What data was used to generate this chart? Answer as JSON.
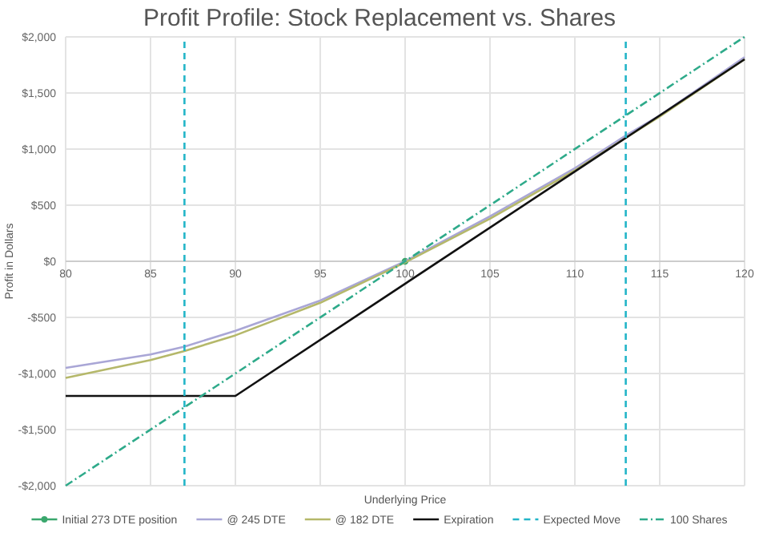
{
  "chart_data": {
    "type": "line",
    "title": "Profit Profile: Stock Replacement vs. Shares",
    "xlabel": "Underlying Price",
    "ylabel": "Profit in Dollars",
    "xlim": [
      80,
      120
    ],
    "xticks": [
      80,
      85,
      90,
      95,
      100,
      105,
      110,
      115,
      120
    ],
    "ylim": [
      -2000,
      2000
    ],
    "yticks": [
      {
        "value": 2000,
        "label": "$2,000"
      },
      {
        "value": 1500,
        "label": "$1,500"
      },
      {
        "value": 1000,
        "label": "$1,000"
      },
      {
        "value": 500,
        "label": "$500"
      },
      {
        "value": 0,
        "label": "$0"
      },
      {
        "value": -500,
        "label": "-$500"
      },
      {
        "value": -1000,
        "label": "-$1,000"
      },
      {
        "value": -1500,
        "label": "-$1,500"
      },
      {
        "value": -2000,
        "label": "-$2,000"
      }
    ],
    "grid": true,
    "legend": "bottom",
    "marker": "none",
    "line_style": "solid",
    "series": [
      {
        "name": "Initial 273 DTE position",
        "color": "#3aa76d",
        "x": [
          100
        ],
        "values": [
          0
        ],
        "marker": "circle"
      },
      {
        "name": "@ 245 DTE",
        "color": "#a9a6d6",
        "x": [
          80,
          85,
          87,
          90,
          95,
          100,
          105,
          110,
          113,
          115,
          120
        ],
        "values": [
          -950,
          -830,
          -760,
          -620,
          -350,
          0,
          400,
          830,
          1120,
          1300,
          1820
        ]
      },
      {
        "name": "@ 182 DTE",
        "color": "#b5b86a",
        "x": [
          80,
          85,
          87,
          90,
          95,
          100,
          105,
          110,
          113,
          115,
          120
        ],
        "values": [
          -1040,
          -880,
          -800,
          -660,
          -370,
          -10,
          380,
          810,
          1100,
          1290,
          1800
        ]
      },
      {
        "name": "Expiration",
        "color": "#111111",
        "x": [
          80,
          90,
          120
        ],
        "values": [
          -1200,
          -1200,
          1800
        ]
      },
      {
        "name": "Expected Move",
        "color": "#23b5c8",
        "x": [
          87,
          87,
          null,
          113,
          113
        ],
        "values": [
          -2000,
          2000,
          null,
          -2000,
          2000
        ],
        "line_style": "dashed"
      },
      {
        "name": "100 Shares",
        "color": "#2eaa8a",
        "x": [
          80,
          120
        ],
        "values": [
          -2000,
          2000
        ],
        "line_style": "dotted"
      }
    ]
  }
}
